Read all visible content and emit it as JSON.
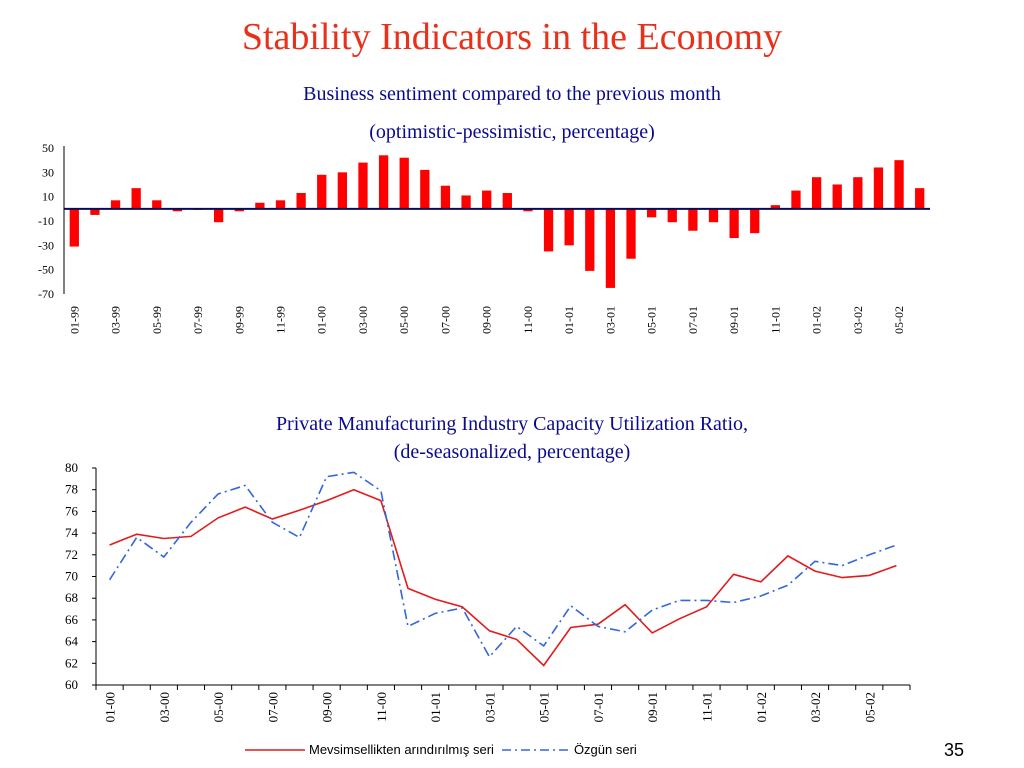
{
  "slide": {
    "title": "Stability Indicators in the Economy",
    "page_number": "35"
  },
  "colors": {
    "title": "#e8311a",
    "subtitle": "#0a0a8c",
    "bar": "#ff0000",
    "zero_line": "#0a0a5a",
    "line_red": "#e41a1c",
    "line_blue": "#3366dd"
  },
  "chart_data": [
    {
      "type": "bar",
      "subtitle_line1": "Business sentiment  compared to the previous month",
      "subtitle_line2": "(optimistic-pessimistic, percentage)",
      "yticks": [
        "50",
        "30",
        "10",
        "-10",
        "-30",
        "-50",
        "-70"
      ],
      "ytick_values": [
        50,
        30,
        10,
        -10,
        -30,
        -50,
        -70
      ],
      "ylim": [
        -70,
        50
      ],
      "xtick_labels": [
        "01-99",
        "03-99",
        "05-99",
        "07-99",
        "09-99",
        "11-99",
        "01-00",
        "03-00",
        "05-00",
        "07-00",
        "09-00",
        "11-00",
        "01-01",
        "03-01",
        "05-01",
        "07-01",
        "09-01",
        "11-01",
        "01-02",
        "03-02",
        "05-02"
      ],
      "categories": [
        "01-99",
        "02-99",
        "03-99",
        "04-99",
        "05-99",
        "06-99",
        "07-99",
        "08-99",
        "09-99",
        "10-99",
        "11-99",
        "12-99",
        "01-00",
        "02-00",
        "03-00",
        "04-00",
        "05-00",
        "06-00",
        "07-00",
        "08-00",
        "09-00",
        "10-00",
        "11-00",
        "12-00",
        "01-01",
        "02-01",
        "03-01",
        "04-01",
        "05-01",
        "06-01",
        "07-01",
        "08-01",
        "09-01",
        "10-01",
        "11-01",
        "12-01",
        "01-02",
        "02-02",
        "03-02",
        "04-02",
        "05-02",
        "06-02"
      ],
      "values": [
        -31,
        -5,
        7,
        17,
        7,
        -2,
        0,
        -11,
        -2,
        5,
        7,
        13,
        28,
        30,
        38,
        44,
        42,
        32,
        19,
        11,
        15,
        13,
        -2,
        -35,
        -30,
        -51,
        -65,
        -41,
        -7,
        -11,
        -18,
        -11,
        -24,
        -20,
        3,
        15,
        26,
        20,
        26,
        34,
        40,
        17
      ]
    },
    {
      "type": "line",
      "subtitle_line1": "Private Manufacturing Industry Capacity Utilization Ratio,",
      "subtitle_line2": "(de-seasonalized, percentage)",
      "yticks": [
        "80",
        "78",
        "76",
        "74",
        "72",
        "70",
        "68",
        "66",
        "64",
        "62",
        "60"
      ],
      "ytick_values": [
        80,
        78,
        76,
        74,
        72,
        70,
        68,
        66,
        64,
        62,
        60
      ],
      "ylim": [
        60,
        80
      ],
      "xtick_labels": [
        "01-00",
        "03-00",
        "05-00",
        "07-00",
        "09-00",
        "11-00",
        "01-01",
        "03-01",
        "05-01",
        "07-01",
        "09-01",
        "11-01",
        "01-02",
        "03-02",
        "05-02"
      ],
      "categories": [
        "01-00",
        "02-00",
        "03-00",
        "04-00",
        "05-00",
        "06-00",
        "07-00",
        "08-00",
        "09-00",
        "10-00",
        "11-00",
        "12-00",
        "01-01",
        "02-01",
        "03-01",
        "04-01",
        "05-01",
        "06-01",
        "07-01",
        "08-01",
        "09-01",
        "10-01",
        "11-01",
        "12-01",
        "01-02",
        "02-02",
        "03-02",
        "04-02",
        "05-02",
        "06-02"
      ],
      "series": [
        {
          "name": "Mevsimsellikten arındırılmış seri",
          "style": "solid",
          "values": [
            72.9,
            73.9,
            73.5,
            73.7,
            75.4,
            76.4,
            75.3,
            76.1,
            77.0,
            78.0,
            77.0,
            68.9,
            67.9,
            67.2,
            65.0,
            64.2,
            61.8,
            65.3,
            65.6,
            67.4,
            64.8,
            66.1,
            67.2,
            70.2,
            69.5,
            71.9,
            70.5,
            69.9,
            70.1,
            71.0
          ]
        },
        {
          "name": "Özgün seri",
          "style": "dashdot",
          "values": [
            69.7,
            73.6,
            71.8,
            75.0,
            77.6,
            78.4,
            75.0,
            73.6,
            79.2,
            79.6,
            77.9,
            65.4,
            66.6,
            67.1,
            62.6,
            65.4,
            63.6,
            67.3,
            65.4,
            64.9,
            66.9,
            67.8,
            67.8,
            67.6,
            68.2,
            69.2,
            71.4,
            71.0,
            72.0,
            72.9
          ]
        }
      ]
    }
  ]
}
